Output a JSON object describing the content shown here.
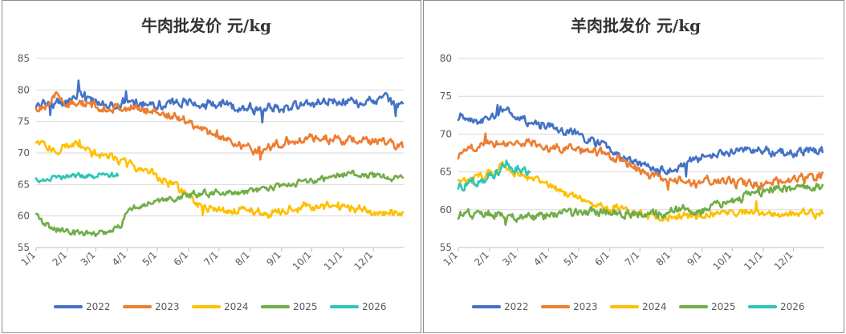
{
  "chart_data": [
    {
      "type": "line",
      "title": "牛肉批发价 元/kg",
      "xlabel": "",
      "ylabel": "",
      "ylim": [
        55,
        85
      ],
      "yticks": [
        55,
        60,
        65,
        70,
        75,
        80,
        85
      ],
      "x_tick_labels": [
        "1/1",
        "2/1",
        "3/1",
        "4/1",
        "5/1",
        "6/1",
        "7/1",
        "8/1",
        "9/1",
        "10/1",
        "11/1",
        "12/1"
      ],
      "grid": true,
      "legend": "bottom",
      "series": [
        {
          "name": "2022",
          "color": "#4472c4",
          "knots": [
            [
              1,
              77.2
            ],
            [
              10,
              78.3
            ],
            [
              20,
              77.6
            ],
            [
              35,
              78.5
            ],
            [
              45,
              79.8
            ],
            [
              60,
              77.8
            ],
            [
              80,
              77.6
            ],
            [
              100,
              78.2
            ],
            [
              120,
              77.8
            ],
            [
              150,
              78.0
            ],
            [
              180,
              77.6
            ],
            [
              210,
              77.3
            ],
            [
              225,
              76.8
            ],
            [
              240,
              77.2
            ],
            [
              270,
              77.6
            ],
            [
              290,
              78.4
            ],
            [
              310,
              78.2
            ],
            [
              330,
              78.0
            ],
            [
              350,
              78.6
            ],
            [
              358,
              77.3
            ],
            [
              364,
              77.5
            ]
          ],
          "noise": 0.6,
          "spikes": [
            [
              15,
              -1.6
            ],
            [
              43,
              2.2
            ],
            [
              50,
              -1.6
            ],
            [
              90,
              1.2
            ],
            [
              225,
              -2.4
            ],
            [
              357,
              -1.5
            ]
          ]
        },
        {
          "name": "2023",
          "color": "#ed7d31",
          "knots": [
            [
              1,
              76.8
            ],
            [
              10,
              77.8
            ],
            [
              22,
              78.9
            ],
            [
              35,
              77.8
            ],
            [
              60,
              77.4
            ],
            [
              90,
              77.1
            ],
            [
              120,
              76.6
            ],
            [
              150,
              75.2
            ],
            [
              170,
              73.5
            ],
            [
              185,
              72.3
            ],
            [
              200,
              71.5
            ],
            [
              215,
              70.5
            ],
            [
              225,
              70.4
            ],
            [
              245,
              71.8
            ],
            [
              270,
              72.3
            ],
            [
              290,
              72.2
            ],
            [
              320,
              71.9
            ],
            [
              350,
              71.6
            ],
            [
              364,
              71.3
            ]
          ],
          "noise": 0.55,
          "spikes": [
            [
              223,
              -1.5
            ],
            [
              180,
              1.0
            ]
          ]
        },
        {
          "name": "2024",
          "color": "#ffc000",
          "knots": [
            [
              1,
              71.6
            ],
            [
              15,
              70.8
            ],
            [
              30,
              70.7
            ],
            [
              44,
              71.8
            ],
            [
              50,
              70.3
            ],
            [
              75,
              69.4
            ],
            [
              95,
              68.0
            ],
            [
              115,
              66.8
            ],
            [
              140,
              64.5
            ],
            [
              155,
              62.6
            ],
            [
              165,
              61.2
            ],
            [
              180,
              60.8
            ],
            [
              210,
              61.0
            ],
            [
              230,
              60.4
            ],
            [
              245,
              60.8
            ],
            [
              270,
              61.6
            ],
            [
              290,
              61.8
            ],
            [
              310,
              61.3
            ],
            [
              335,
              60.8
            ],
            [
              350,
              60.3
            ],
            [
              364,
              60.2
            ]
          ],
          "noise": 0.55,
          "spikes": [
            [
              44,
              1.2
            ],
            [
              166,
              -1.2
            ],
            [
              300,
              1.0
            ]
          ]
        },
        {
          "name": "2025",
          "color": "#70ad47",
          "knots": [
            [
              1,
              60.2
            ],
            [
              10,
              58.8
            ],
            [
              20,
              57.8
            ],
            [
              40,
              57.3
            ],
            [
              60,
              57.2
            ],
            [
              75,
              57.8
            ],
            [
              85,
              58.6
            ],
            [
              92,
              61.0
            ],
            [
              110,
              62.0
            ],
            [
              130,
              62.7
            ],
            [
              150,
              63.3
            ],
            [
              175,
              63.6
            ],
            [
              195,
              63.7
            ],
            [
              220,
              64.1
            ],
            [
              250,
              64.9
            ],
            [
              275,
              65.7
            ],
            [
              300,
              66.4
            ],
            [
              320,
              66.8
            ],
            [
              340,
              66.4
            ],
            [
              364,
              66.0
            ]
          ],
          "noise": 0.4,
          "spikes": []
        },
        {
          "name": "2026",
          "color": "#2ec4b6",
          "knots": [
            [
              1,
              65.8
            ],
            [
              15,
              66.0
            ],
            [
              30,
              66.4
            ],
            [
              45,
              66.4
            ],
            [
              60,
              66.3
            ],
            [
              70,
              66.6
            ],
            [
              82,
              66.4
            ]
          ],
          "noise": 0.35,
          "spikes": []
        }
      ]
    },
    {
      "type": "line",
      "title": "羊肉批发价 元/kg",
      "xlabel": "",
      "ylabel": "",
      "ylim": [
        55,
        80
      ],
      "yticks": [
        55,
        60,
        65,
        70,
        75,
        80
      ],
      "x_tick_labels": [
        "1/1",
        "2/1",
        "3/1",
        "4/1",
        "5/1",
        "6/1",
        "7/1",
        "8/1",
        "9/1",
        "10/1",
        "11/1",
        "12/1"
      ],
      "grid": true,
      "legend": "bottom",
      "series": [
        {
          "name": "2022",
          "color": "#4472c4",
          "knots": [
            [
              1,
              72.4
            ],
            [
              15,
              72.0
            ],
            [
              25,
              71.8
            ],
            [
              38,
              72.6
            ],
            [
              45,
              73.4
            ],
            [
              55,
              72.8
            ],
            [
              70,
              71.6
            ],
            [
              90,
              71.0
            ],
            [
              110,
              70.2
            ],
            [
              130,
              69.5
            ],
            [
              150,
              68.2
            ],
            [
              165,
              66.8
            ],
            [
              185,
              65.8
            ],
            [
              205,
              65.0
            ],
            [
              220,
              65.6
            ],
            [
              235,
              66.4
            ],
            [
              250,
              67.0
            ],
            [
              270,
              67.6
            ],
            [
              290,
              67.8
            ],
            [
              310,
              67.8
            ],
            [
              330,
              67.5
            ],
            [
              350,
              67.8
            ],
            [
              364,
              68.0
            ]
          ],
          "noise": 0.45,
          "spikes": [
            [
              40,
              1.4
            ],
            [
              228,
              -1.6
            ]
          ]
        },
        {
          "name": "2023",
          "color": "#ed7d31",
          "knots": [
            [
              1,
              67.2
            ],
            [
              10,
              67.8
            ],
            [
              18,
              68.4
            ],
            [
              28,
              69.4
            ],
            [
              40,
              68.8
            ],
            [
              60,
              69.0
            ],
            [
              80,
              68.6
            ],
            [
              100,
              68.2
            ],
            [
              120,
              68.0
            ],
            [
              140,
              67.6
            ],
            [
              155,
              67.0
            ],
            [
              170,
              66.0
            ],
            [
              185,
              65.0
            ],
            [
              195,
              64.4
            ],
            [
              210,
              63.8
            ],
            [
              225,
              63.6
            ],
            [
              240,
              63.6
            ],
            [
              260,
              63.8
            ],
            [
              280,
              63.6
            ],
            [
              300,
              63.4
            ],
            [
              320,
              63.6
            ],
            [
              340,
              64.0
            ],
            [
              355,
              64.2
            ],
            [
              364,
              64.6
            ]
          ],
          "noise": 0.45,
          "spikes": [
            [
              28,
              1.2
            ],
            [
              210,
              -1.0
            ]
          ]
        },
        {
          "name": "2024",
          "color": "#ffc000",
          "knots": [
            [
              1,
              64.2
            ],
            [
              15,
              64.0
            ],
            [
              30,
              64.6
            ],
            [
              45,
              65.8
            ],
            [
              55,
              64.8
            ],
            [
              70,
              64.3
            ],
            [
              90,
              63.2
            ],
            [
              105,
              62.4
            ],
            [
              120,
              61.6
            ],
            [
              140,
              60.6
            ],
            [
              155,
              60.2
            ],
            [
              175,
              59.5
            ],
            [
              200,
              59.0
            ],
            [
              220,
              59.1
            ],
            [
              240,
              59.3
            ],
            [
              260,
              59.4
            ],
            [
              280,
              59.5
            ],
            [
              300,
              59.4
            ],
            [
              320,
              59.3
            ],
            [
              340,
              59.4
            ],
            [
              364,
              59.6
            ]
          ],
          "noise": 0.4,
          "spikes": [
            [
              298,
              1.3
            ]
          ]
        },
        {
          "name": "2025",
          "color": "#70ad47",
          "knots": [
            [
              1,
              59.3
            ],
            [
              20,
              59.6
            ],
            [
              40,
              59.3
            ],
            [
              60,
              59.0
            ],
            [
              80,
              59.0
            ],
            [
              100,
              59.4
            ],
            [
              120,
              59.5
            ],
            [
              140,
              59.6
            ],
            [
              160,
              59.6
            ],
            [
              180,
              59.5
            ],
            [
              200,
              59.5
            ],
            [
              215,
              59.7
            ],
            [
              230,
              59.8
            ],
            [
              245,
              60.1
            ],
            [
              260,
              60.6
            ],
            [
              275,
              61.3
            ],
            [
              290,
              62.1
            ],
            [
              305,
              62.4
            ],
            [
              320,
              62.6
            ],
            [
              335,
              62.8
            ],
            [
              350,
              63.0
            ],
            [
              364,
              63.0
            ]
          ],
          "noise": 0.45,
          "spikes": [
            [
              48,
              -0.8
            ]
          ]
        },
        {
          "name": "2026",
          "color": "#2ec4b6",
          "knots": [
            [
              1,
              63.2
            ],
            [
              12,
              63.4
            ],
            [
              22,
              63.8
            ],
            [
              32,
              64.6
            ],
            [
              42,
              65.4
            ],
            [
              50,
              66.0
            ],
            [
              58,
              65.6
            ],
            [
              65,
              65.2
            ],
            [
              72,
              64.9
            ]
          ],
          "noise": 0.5,
          "spikes": []
        }
      ]
    }
  ]
}
